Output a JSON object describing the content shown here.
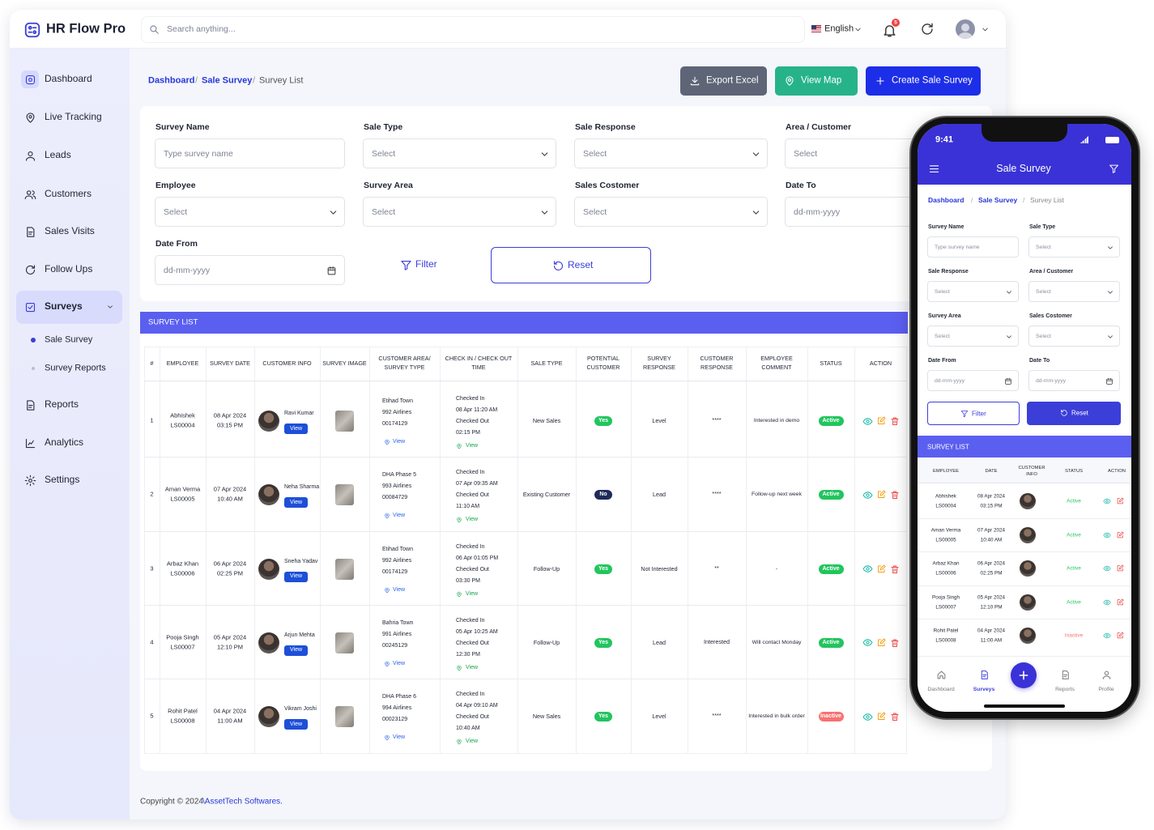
{
  "brand": "HR Flow Pro",
  "topbar": {
    "search": "Search anything...",
    "language": "English",
    "notifications": "5"
  },
  "sidebar": {
    "items": [
      "Dashboard",
      "Live Tracking",
      "Leads",
      "Customers",
      "Sales Visits",
      "Follow Ups",
      "Surveys",
      "Reports",
      "Analytics",
      "Settings"
    ],
    "subitems": [
      "Sale Survey",
      "Survey Reports"
    ]
  },
  "breadcrumb": [
    "Dashboard",
    "Sale Survey",
    "Survey List"
  ],
  "actions": [
    "Export Excel",
    "View Map",
    "Create Sale Survey"
  ],
  "filters": {
    "fields": [
      {
        "label": "Survey Name",
        "placeholder": "Type survey name"
      },
      {
        "label": "Sale Type",
        "placeholder": "Select"
      },
      {
        "label": "Sale Response",
        "placeholder": "Select"
      },
      {
        "label": "Area / Customer",
        "placeholder": "Select"
      },
      {
        "label": "Employee",
        "placeholder": "Select"
      },
      {
        "label": "Survey Area",
        "placeholder": "Select"
      },
      {
        "label": "Sales Costomer",
        "placeholder": "Select"
      },
      {
        "label": "Date To",
        "placeholder": "dd-mm-yyyy"
      },
      {
        "label": "Date From",
        "placeholder": "dd-mm-yyyy"
      }
    ],
    "filter_button": "Filter",
    "reset_button": "Reset"
  },
  "table": {
    "title": "SURVEY LIST",
    "headers": [
      "#",
      "EMPLOYEE",
      "SURVEY DATE",
      "CUSTOMER INFO",
      "SURVEY IMAGE",
      "CUSTOMER AREA/ SURVEY TYPE",
      "CHECK IN / CHECK OUT TIME",
      "SALE TYPE",
      "POTENTIAL CUSTOMER",
      "SURVEY RESPONSE",
      "CUSTOMER RESPONSE",
      "EMPLOYEE COMMENT",
      "STATUS",
      "ACTION"
    ],
    "rows": [
      {
        "no": 1,
        "employee": "Abhishek",
        "id": "LS00004",
        "date": "08 Apr 2024",
        "time": "03:15 PM",
        "customer": "Ravi Kumar",
        "view": "View",
        "area": [
          "Etihad Town",
          "992 Airlines",
          "00174129"
        ],
        "area_view": "View",
        "check_in_label": "Checked In",
        "check_in": "08 Apr 11:20 AM",
        "check_out_label": "Checked Out",
        "check_out": "02:15 PM",
        "time_view": "View",
        "sale_type": "New Sales",
        "potential": "Yes",
        "potential_color": "#22c55e",
        "survey_response": "Level",
        "customer_response": "****",
        "comment": "Interested in demo",
        "status": "Active",
        "status_color": "#22c55e"
      },
      {
        "no": 2,
        "employee": "Aman Verma",
        "id": "LS00005",
        "date": "07 Apr 2024",
        "time": "10:40 AM",
        "customer": "Neha Sharma",
        "view": "View",
        "area": [
          "DHA Phase 5",
          "993 Airlines",
          "00084729"
        ],
        "area_view": "View",
        "check_in_label": "Checked In",
        "check_in": "07 Apr 09:35 AM",
        "check_out_label": "Checked Out",
        "check_out": "11:10 AM",
        "time_view": "View",
        "sale_type": "Existing Customer",
        "potential": "No",
        "potential_color": "#1e2a5a",
        "survey_response": "Lead",
        "customer_response": "****",
        "comment": "Follow-up next week",
        "status": "Active",
        "status_color": "#22c55e"
      },
      {
        "no": 3,
        "employee": "Arbaz Khan",
        "id": "LS00006",
        "date": "06 Apr 2024",
        "time": "02:25 PM",
        "customer": "Sneha Yadav",
        "view": "View",
        "area": [
          "Etihad Town",
          "992 Airlines",
          "00174129"
        ],
        "area_view": "View",
        "check_in_label": "Checked In",
        "check_in": "06 Apr 01:05 PM",
        "check_out_label": "Checked Out",
        "check_out": "03:30 PM",
        "time_view": "View",
        "sale_type": "Follow-Up",
        "potential": "Yes",
        "potential_color": "#22c55e",
        "survey_response": "Not Interested",
        "customer_response": "**",
        "comment": "-",
        "status": "Active",
        "status_color": "#22c55e"
      },
      {
        "no": 4,
        "employee": "Pooja Singh",
        "id": "LS00007",
        "date": "05 Apr 2024",
        "time": "12:10 PM",
        "customer": "Arjun Mehta",
        "view": "View",
        "area": [
          "Bahria Town",
          "991 Airlines",
          "00245129"
        ],
        "area_view": "View",
        "check_in_label": "Checked In",
        "check_in": "05 Apr 10:25 AM",
        "check_out_label": "Checked Out",
        "check_out": "12:30 PM",
        "time_view": "View",
        "sale_type": "Follow-Up",
        "potential": "Yes",
        "potential_color": "#22c55e",
        "survey_response": "Lead",
        "customer_response": "Interested",
        "comment": "Will contact Monday",
        "status": "Active",
        "status_color": "#22c55e"
      },
      {
        "no": 5,
        "employee": "Rohit Patel",
        "id": "LS00008",
        "date": "04 Apr 2024",
        "time": "11:00 AM",
        "customer": "Vikram Joshi",
        "view": "View",
        "area": [
          "DHA Phase 6",
          "994 Airlines",
          "00023129"
        ],
        "area_view": "View",
        "check_in_label": "Checked In",
        "check_in": "04 Apr 09:10 AM",
        "check_out_label": "Checked Out",
        "check_out": "10:40 AM",
        "time_view": "View",
        "sale_type": "New Sales",
        "potential": "Yes",
        "potential_color": "#22c55e",
        "survey_response": "Level",
        "customer_response": "****",
        "comment": "Interested in bulk order",
        "status": "Inactive",
        "status_color": "#f87171"
      }
    ]
  },
  "footer": {
    "text": "Copyright © 2024",
    "link": "\\AssetTech Softwares."
  },
  "mobile": {
    "time": "9:41",
    "title": "Sale Survey",
    "headers": [
      "EMPLOYEE",
      "DATE",
      "CUSTOMER INFO",
      "STATUS",
      "ACTION"
    ],
    "nav": [
      "Dashboard",
      "Surveys",
      "Reports",
      "Profile"
    ]
  }
}
